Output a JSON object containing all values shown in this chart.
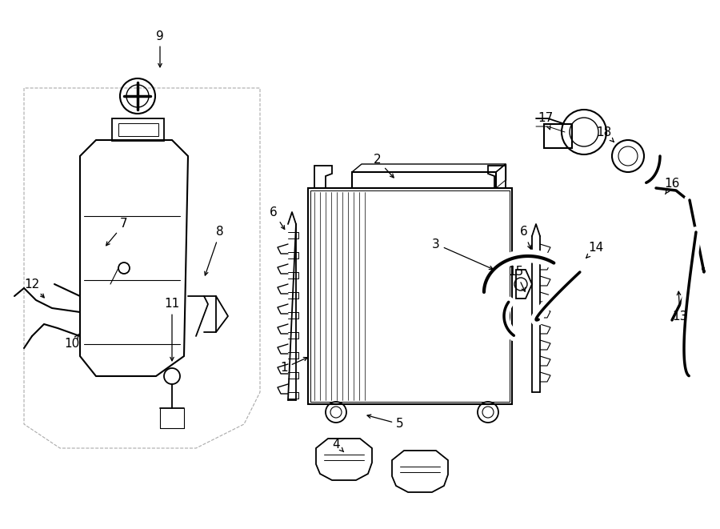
{
  "bg_color": "#ffffff",
  "line_color": "#000000",
  "figsize": [
    9.0,
    6.61
  ],
  "dpi": 100,
  "lw": 1.3,
  "xlim": [
    0,
    900
  ],
  "ylim": [
    0,
    661
  ]
}
